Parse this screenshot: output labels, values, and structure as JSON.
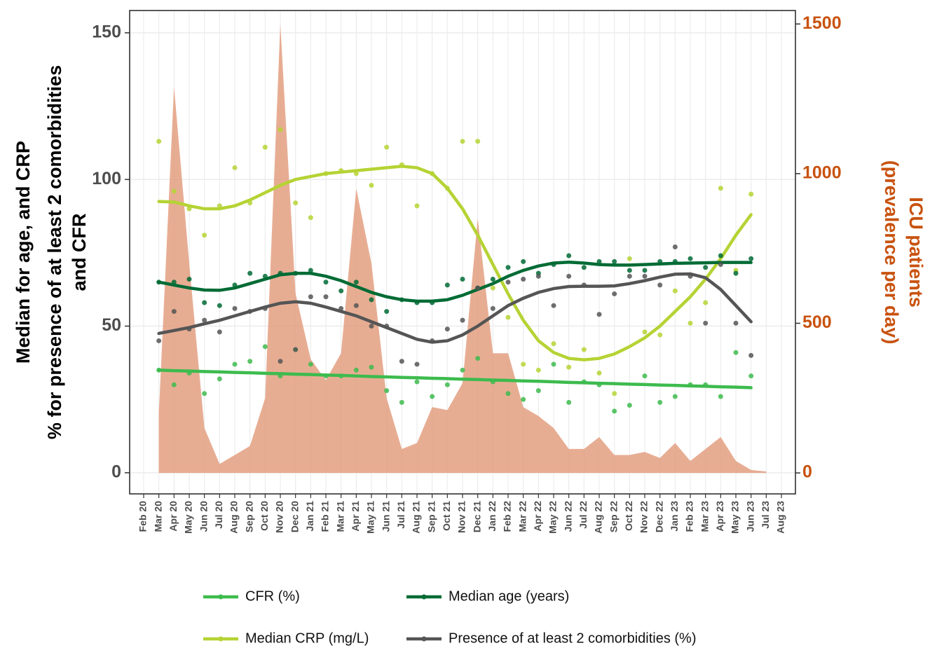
{
  "chart_data": {
    "type": "line",
    "categories": [
      "Feb 20",
      "Mar 20",
      "Apr 20",
      "May 20",
      "Jun 20",
      "Jul 20",
      "Aug 20",
      "Sep 20",
      "Oct 20",
      "Nov 20",
      "Dec 20",
      "Jan 21",
      "Feb 21",
      "Mar 21",
      "Apr 21",
      "May 21",
      "Jun 21",
      "Jul 21",
      "Aug 21",
      "Sep 21",
      "Oct 21",
      "Nov 21",
      "Dec 21",
      "Jan 22",
      "Feb 22",
      "Mar 22",
      "Apr 22",
      "May 22",
      "Jun 22",
      "Jul 22",
      "Aug 22",
      "Sep 22",
      "Oct 22",
      "Nov 22",
      "Dec 22",
      "Jan 23",
      "Feb 23",
      "Mar 23",
      "Apr 23",
      "May 23",
      "Jun 23",
      "Jul 23",
      "Aug 23"
    ],
    "y_label": [
      "Median for age, and CRP",
      "% for presence of at least 2 comorbidities",
      "and CFR"
    ],
    "y2_label": [
      "ICU patients",
      "(prevalence per day)"
    ],
    "ylim": [
      -7.2,
      157.6
    ],
    "yticks": [
      0,
      50,
      100,
      150
    ],
    "y2lim": [
      -70,
      1545
    ],
    "y2ticks": [
      0,
      500,
      1000,
      1500
    ],
    "y2_color": "#c8520f",
    "grid": true,
    "legend": "bottom",
    "series": [
      {
        "name": "CFR (%)",
        "color": "#3dbb4e",
        "values": [
          null,
          35,
          30,
          34,
          27,
          32,
          37,
          38,
          43,
          33,
          42,
          37,
          33,
          33,
          35,
          36,
          28,
          24,
          31,
          26,
          30,
          35,
          39,
          31,
          27,
          25,
          28,
          37,
          24,
          31,
          30,
          21,
          23,
          33,
          24,
          26,
          30,
          30,
          26,
          41,
          33,
          null,
          null
        ],
        "trend": [
          null,
          35,
          34.8,
          34.7,
          34.5,
          34.4,
          34.2,
          34.1,
          33.9,
          33.8,
          33.6,
          33.5,
          33.3,
          33.2,
          33,
          32.8,
          32.7,
          32.5,
          32.4,
          32.2,
          32.1,
          31.9,
          31.8,
          31.6,
          31.5,
          31.3,
          31.2,
          31,
          30.8,
          30.7,
          30.5,
          30.4,
          30.2,
          30.1,
          29.9,
          29.8,
          29.6,
          29.5,
          29.3,
          29.2,
          29,
          null,
          null
        ]
      },
      {
        "name": "Median CRP (mg/L)",
        "color": "#b5d334",
        "values": [
          null,
          113,
          96,
          90,
          81,
          91,
          104,
          92,
          111,
          117,
          92,
          87,
          102,
          103,
          102,
          98,
          111,
          105,
          91,
          102,
          97,
          113,
          113,
          63,
          53,
          37,
          35,
          44,
          36,
          42,
          34,
          27,
          73,
          48,
          47,
          62,
          51,
          58,
          97,
          69,
          95,
          null,
          null
        ],
        "trend": [
          null,
          92.5,
          92.3,
          91,
          90,
          90,
          91,
          93,
          95.5,
          98,
          100,
          101,
          102,
          102.5,
          103,
          103.5,
          104,
          104.5,
          104,
          102,
          97,
          90,
          81,
          71,
          61,
          52,
          45,
          41,
          39,
          38.5,
          39,
          40.5,
          43,
          46,
          50,
          55,
          60,
          66,
          73,
          81,
          88,
          null,
          null
        ]
      },
      {
        "name": "Median age (years)",
        "color": "#006b35",
        "values": [
          null,
          65,
          65,
          66,
          58,
          57,
          64,
          68,
          67,
          68,
          68,
          69,
          65,
          62,
          65,
          59,
          55,
          59,
          58,
          58,
          64,
          66,
          63,
          66,
          70,
          72,
          68,
          71,
          74,
          70,
          72,
          72,
          69,
          69,
          72,
          72,
          73,
          70,
          74,
          68,
          73,
          null,
          null
        ],
        "trend": [
          null,
          65,
          64,
          63,
          62.3,
          62.2,
          63,
          64.5,
          66,
          67.5,
          68,
          68,
          67,
          65.5,
          63.5,
          61.5,
          60,
          59,
          58.5,
          58.5,
          59,
          60.5,
          62.5,
          64.5,
          67,
          69,
          70.5,
          71.5,
          71.8,
          71.5,
          71,
          70.8,
          70.8,
          71,
          71.2,
          71.4,
          71.5,
          71.6,
          71.7,
          71.7,
          71.7,
          null,
          null
        ]
      },
      {
        "name": "Presence of at least 2 comorbidities (%)",
        "color": "#555555",
        "values": [
          null,
          45,
          55,
          49,
          52,
          48,
          56,
          55,
          56,
          38,
          42,
          60,
          60,
          56,
          57,
          50,
          50,
          38,
          37,
          45,
          49,
          52,
          63,
          56,
          65,
          66,
          67,
          57,
          67,
          64,
          54,
          61,
          67,
          67,
          64,
          77,
          67,
          51,
          71,
          51,
          40,
          null,
          null
        ],
        "trend": [
          null,
          47.5,
          48.5,
          49.5,
          50.8,
          52,
          53.5,
          55,
          56.5,
          57.8,
          58.3,
          57.8,
          56.5,
          55,
          53.5,
          51.5,
          49.5,
          47.5,
          45.5,
          44.5,
          45,
          47,
          50,
          53.5,
          57,
          59.5,
          61.5,
          62.8,
          63.5,
          63.6,
          63.6,
          63.7,
          64.5,
          65.5,
          66.7,
          67.7,
          67.8,
          66.5,
          62.5,
          57,
          51.5,
          null,
          null
        ]
      },
      {
        "type": "area",
        "axis": "y2",
        "color": "#e39f80",
        "values": [
          null,
          200,
          1290,
          700,
          150,
          30,
          60,
          90,
          250,
          1500,
          600,
          380,
          310,
          400,
          950,
          700,
          250,
          80,
          100,
          220,
          210,
          300,
          850,
          400,
          400,
          220,
          190,
          150,
          80,
          80,
          120,
          60,
          60,
          70,
          50,
          100,
          40,
          80,
          120,
          40,
          10,
          5,
          null
        ]
      }
    ]
  }
}
